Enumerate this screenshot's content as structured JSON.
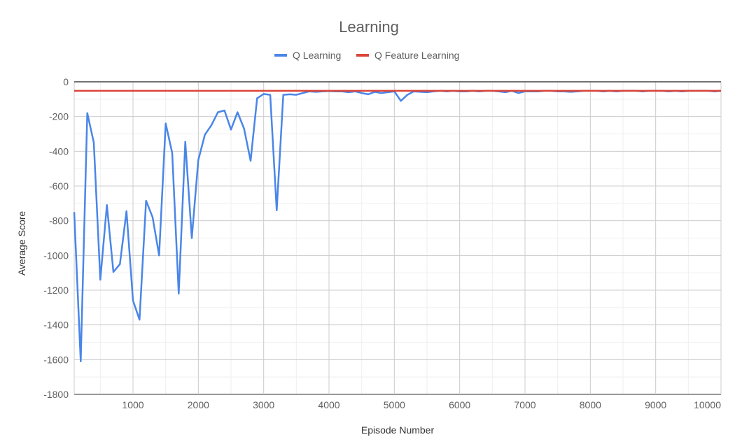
{
  "chart_data": {
    "type": "line",
    "title": "Learning",
    "xlabel": "Episode Number",
    "ylabel": "Average Score",
    "xlim": [
      100,
      10000
    ],
    "ylim": [
      -1800,
      0
    ],
    "x_ticks": [
      1000,
      2000,
      3000,
      4000,
      5000,
      6000,
      7000,
      8000,
      9000,
      10000
    ],
    "y_ticks": [
      0,
      -200,
      -400,
      -600,
      -800,
      -1000,
      -1200,
      -1400,
      -1600,
      -1800
    ],
    "x_tick_labels": [
      "1000",
      "2000",
      "3000",
      "4000",
      "5000",
      "6000",
      "7000",
      "8000",
      "9000",
      "10000"
    ],
    "y_tick_labels": [
      "0",
      "-200",
      "-400",
      "-600",
      "-800",
      "-1000",
      "-1200",
      "-1400",
      "-1600",
      "-1800"
    ],
    "grid": true,
    "legend_position": "top",
    "series": [
      {
        "name": "Q Learning",
        "color": "#4a86e8",
        "x": [
          100,
          200,
          300,
          400,
          500,
          600,
          700,
          800,
          900,
          1000,
          1100,
          1200,
          1300,
          1400,
          1500,
          1600,
          1700,
          1800,
          1900,
          2000,
          2100,
          2200,
          2300,
          2400,
          2500,
          2600,
          2700,
          2800,
          2900,
          3000,
          3100,
          3200,
          3300,
          3400,
          3500,
          3600,
          3700,
          3800,
          3900,
          4000,
          4100,
          4200,
          4300,
          4400,
          4500,
          4600,
          4700,
          4800,
          4900,
          5000,
          5100,
          5200,
          5300,
          5400,
          5500,
          5600,
          5700,
          5800,
          5900,
          6000,
          6100,
          6200,
          6300,
          6400,
          6500,
          6600,
          6700,
          6800,
          6900,
          7000,
          7100,
          7200,
          7300,
          7400,
          7500,
          7600,
          7700,
          7800,
          7900,
          8000,
          8100,
          8200,
          8300,
          8400,
          8500,
          8600,
          8700,
          8800,
          8900,
          9000,
          9100,
          9200,
          9300,
          9400,
          9500,
          9600,
          9700,
          9800,
          9900,
          10000
        ],
        "y": [
          -750,
          -1610,
          -180,
          -350,
          -1140,
          -710,
          -1095,
          -1050,
          -745,
          -1260,
          -1370,
          -685,
          -780,
          -1000,
          -240,
          -410,
          -1220,
          -345,
          -900,
          -450,
          -305,
          -250,
          -175,
          -165,
          -275,
          -175,
          -270,
          -455,
          -95,
          -70,
          -75,
          -740,
          -75,
          -72,
          -75,
          -65,
          -55,
          -58,
          -55,
          -53,
          -55,
          -55,
          -60,
          -55,
          -65,
          -72,
          -58,
          -65,
          -60,
          -55,
          -110,
          -75,
          -55,
          -58,
          -60,
          -55,
          -52,
          -55,
          -52,
          -55,
          -55,
          -52,
          -55,
          -52,
          -52,
          -55,
          -60,
          -52,
          -65,
          -55,
          -55,
          -55,
          -52,
          -52,
          -55,
          -55,
          -58,
          -55,
          -52,
          -52,
          -52,
          -55,
          -52,
          -55,
          -52,
          -52,
          -52,
          -55,
          -52,
          -52,
          -52,
          -55,
          -52,
          -55,
          -52,
          -52,
          -52,
          -52,
          -55,
          -52
        ]
      },
      {
        "name": "Q Feature Learning",
        "color": "#db4437",
        "x": [
          100,
          1000,
          2000,
          3000,
          4000,
          5000,
          6000,
          7000,
          8000,
          9000,
          10000
        ],
        "y": [
          -52,
          -52,
          -52,
          -52,
          -52,
          -52,
          -52,
          -52,
          -52,
          -52,
          -52
        ]
      }
    ]
  }
}
